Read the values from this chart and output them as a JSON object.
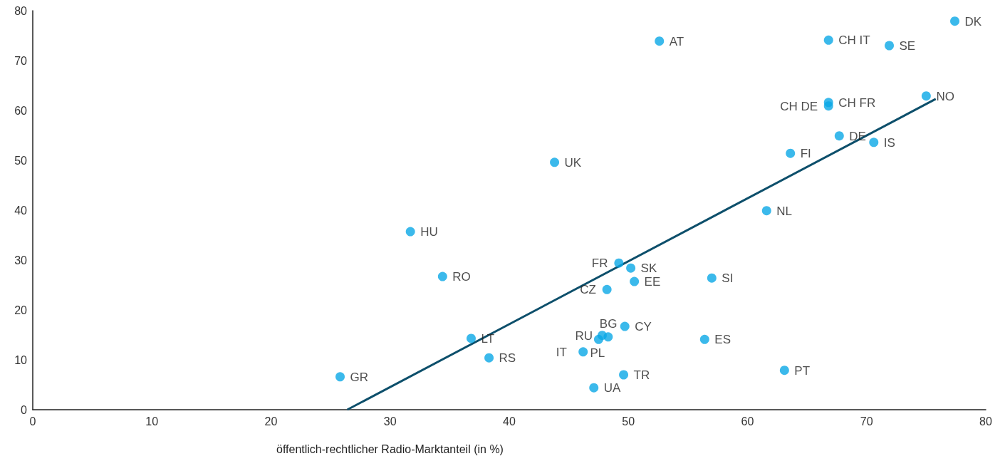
{
  "chart_data": {
    "type": "scatter",
    "xlabel": "öffentlich-rechtlicher Radio-Marktanteil (in %)",
    "xlim": [
      0,
      80
    ],
    "xticks": [
      0,
      10,
      20,
      30,
      40,
      50,
      60,
      70,
      80
    ],
    "ylim": [
      0,
      80
    ],
    "yticks": [
      0,
      10,
      20,
      30,
      40,
      50,
      60,
      70,
      80
    ],
    "grid": false,
    "marker": "circle",
    "series": [
      {
        "color": "#0aa7e6",
        "x": [
          77.4,
          66.8,
          71.9,
          52.6,
          75.0,
          66.8,
          66.8,
          67.7,
          70.6,
          63.6,
          43.8,
          61.6,
          31.7,
          49.2,
          50.2,
          34.4,
          57.0,
          50.5,
          48.2,
          49.7,
          47.8,
          48.3,
          47.5,
          56.4,
          36.8,
          38.3,
          46.2,
          63.1,
          49.6,
          25.8,
          47.1
        ],
        "values": [
          77.9,
          74.1,
          73.0,
          73.9,
          62.9,
          61.6,
          60.9,
          54.9,
          53.6,
          51.4,
          49.6,
          39.9,
          35.7,
          29.4,
          28.4,
          26.7,
          26.4,
          25.7,
          24.1,
          16.7,
          14.9,
          14.6,
          14.1,
          14.1,
          14.3,
          10.4,
          11.6,
          7.9,
          7.0,
          6.6,
          4.4
        ]
      },
      {
        "type": "line",
        "marker": "none",
        "color": "#0d4f6b",
        "x": [
          26.4,
          75.8
        ],
        "values": [
          0,
          62.3
        ]
      }
    ],
    "annotations": [
      {
        "text": "DK",
        "x": 77.4,
        "y": 77.9
      },
      {
        "text": "CH IT",
        "x": 66.8,
        "y": 74.1
      },
      {
        "text": "SE",
        "x": 71.9,
        "y": 73.0
      },
      {
        "text": "AT",
        "x": 52.6,
        "y": 73.9
      },
      {
        "text": "NO",
        "x": 75.0,
        "y": 62.9
      },
      {
        "text": "CH FR",
        "x": 66.8,
        "y": 61.6
      },
      {
        "text": "CH DE",
        "x": 66.8,
        "y": 60.9
      },
      {
        "text": "DE",
        "x": 67.7,
        "y": 54.9
      },
      {
        "text": "IS",
        "x": 70.6,
        "y": 53.6
      },
      {
        "text": "FI",
        "x": 63.6,
        "y": 51.4
      },
      {
        "text": "UK",
        "x": 43.8,
        "y": 49.6
      },
      {
        "text": "NL",
        "x": 61.6,
        "y": 39.9
      },
      {
        "text": "HU",
        "x": 31.7,
        "y": 35.7
      },
      {
        "text": "FR",
        "x": 49.2,
        "y": 29.4
      },
      {
        "text": "SK",
        "x": 50.2,
        "y": 28.4
      },
      {
        "text": "RO",
        "x": 34.4,
        "y": 26.7
      },
      {
        "text": "SI",
        "x": 57.0,
        "y": 26.4
      },
      {
        "text": "EE",
        "x": 50.5,
        "y": 25.7
      },
      {
        "text": "CZ",
        "x": 48.2,
        "y": 24.1
      },
      {
        "text": "CY",
        "x": 49.7,
        "y": 16.7
      },
      {
        "text": "RU",
        "x": 47.8,
        "y": 14.9
      },
      {
        "text": "BG",
        "x": 48.3,
        "y": 14.6
      },
      {
        "text": "PL",
        "x": 47.5,
        "y": 14.1
      },
      {
        "text": "ES",
        "x": 56.4,
        "y": 14.1
      },
      {
        "text": "LT",
        "x": 36.8,
        "y": 14.3
      },
      {
        "text": "RS",
        "x": 38.3,
        "y": 10.4
      },
      {
        "text": "IT",
        "x": 46.2,
        "y": 11.6
      },
      {
        "text": "PT",
        "x": 63.1,
        "y": 7.9
      },
      {
        "text": "TR",
        "x": 49.6,
        "y": 7.0
      },
      {
        "text": "GR",
        "x": 25.8,
        "y": 6.6
      },
      {
        "text": "UA",
        "x": 47.1,
        "y": 4.4
      }
    ]
  }
}
